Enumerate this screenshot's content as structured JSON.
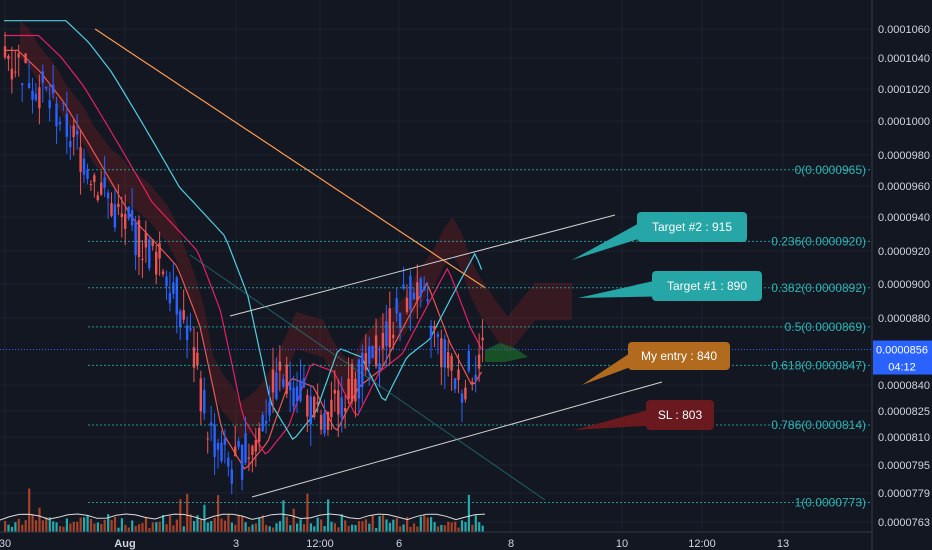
{
  "chart_data": {
    "type": "candlestick",
    "x_labels": [
      "30",
      "Aug",
      "3",
      "12:00",
      "6",
      "8",
      "10",
      "12:00",
      "13"
    ],
    "y_ticks": [
      "0.0001060",
      "0.0001040",
      "0.0001020",
      "0.0001000",
      "0.0000980",
      "0.0000960",
      "0.0000940",
      "0.0000920",
      "0.0000900",
      "0.0000880",
      "0.0000840",
      "0.0000825",
      "0.0000810",
      "0.0000795",
      "0.0000779",
      "0.0000763"
    ],
    "y_scale": "log",
    "current_price": "0.0000856",
    "countdown": "04:12",
    "fib_levels": [
      {
        "ratio": "0",
        "label": "0(0.0000965)",
        "value": 9.65e-05
      },
      {
        "ratio": "0.236",
        "label": "0.236(0.0000920)",
        "value": 9.2e-05
      },
      {
        "ratio": "0.382",
        "label": "0.382(0.0000892)",
        "value": 8.92e-05
      },
      {
        "ratio": "0.5",
        "label": "0.5(0.0000869)",
        "value": 8.69e-05
      },
      {
        "ratio": "0.618",
        "label": "0.618(0.0000847)",
        "value": 8.47e-05
      },
      {
        "ratio": "0.786",
        "label": "0.786(0.0000814)",
        "value": 8.14e-05
      },
      {
        "ratio": "1",
        "label": "1(0.0000773)",
        "value": 7.73e-05
      }
    ],
    "annotations": [
      {
        "text": "Target #2 : 915",
        "color": "#26a6a6"
      },
      {
        "text": "Target #1 : 890",
        "color": "#26a6a6"
      },
      {
        "text": "My entry : 840",
        "color": "#b26a1f"
      },
      {
        "text": "SL : 803",
        "color": "#6a1a1f"
      }
    ],
    "series": [
      {
        "name": "close",
        "approx_values": [
          0.0001045,
          0.000103,
          0.000101,
          9.85e-05,
          9.6e-05,
          9.35e-05,
          9.2e-05,
          9.05e-05,
          8.7e-05,
          8.1e-05,
          7.9e-05,
          8.05e-05,
          8.4e-05,
          8.35e-05,
          8.1e-05,
          8.35e-05,
          8.45e-05,
          8.7e-05,
          8.95e-05,
          8.6e-05,
          8.35e-05,
          8.56e-05
        ]
      }
    ],
    "colors": {
      "background": "#131722",
      "up": "#2962ff",
      "down": "#ef5350",
      "ma_fast": "#ef5350",
      "ma_mid": "#e91e63",
      "ma_slow": "#4dd0e1",
      "ma_long": "#ff9a4d",
      "fib": "#2bb3b3",
      "price_tag": "#2962ff"
    }
  }
}
